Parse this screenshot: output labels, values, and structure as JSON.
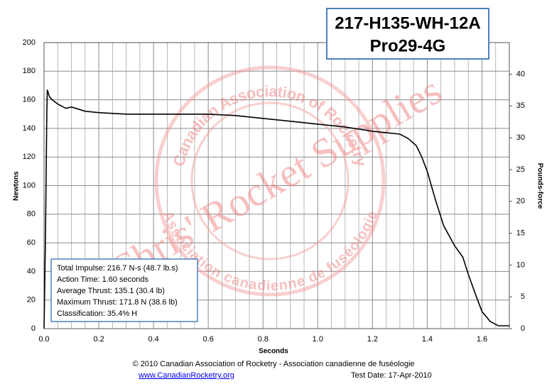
{
  "chart_data": {
    "type": "line",
    "title": "217-H135-WH-12A",
    "subtitle": "Pro29-4G",
    "x_label": "Seconds",
    "y_label": "Newtons",
    "y2_label": "Pounds-force",
    "xlim": [
      0,
      1.7
    ],
    "ylim": [
      0,
      200
    ],
    "y2lim": [
      0,
      44.96
    ],
    "xticks": [
      {
        "value": 0,
        "label": "0.0"
      },
      0.2,
      0.4,
      0.6,
      0.8,
      {
        "value": 1,
        "label": "1.0"
      },
      1.2,
      1.4,
      1.6
    ],
    "xminorticks": [
      0.05,
      0.1,
      0.15,
      0.25,
      0.3,
      0.35,
      0.45,
      0.5,
      0.55,
      0.65,
      0.7,
      0.75,
      0.85,
      0.9,
      0.95,
      1.05,
      1.1,
      1.15,
      1.25,
      1.3,
      1.35,
      1.45,
      1.5,
      1.55,
      1.65,
      1.7
    ],
    "yticks": [
      0,
      20,
      40,
      60,
      80,
      100,
      120,
      140,
      160,
      180,
      200
    ],
    "y2ticks": [
      0,
      5,
      10,
      15,
      20,
      25,
      30,
      35,
      40
    ],
    "grid": true,
    "series": [
      {
        "name": "Thrust",
        "color": "#000000",
        "x": [
          0,
          0.005,
          0.01,
          0.012,
          0.02,
          0.03,
          0.05,
          0.08,
          0.1,
          0.15,
          0.2,
          0.3,
          0.4,
          0.5,
          0.6,
          0.7,
          0.8,
          0.9,
          1.0,
          1.1,
          1.2,
          1.25,
          1.3,
          1.33,
          1.36,
          1.38,
          1.4,
          1.43,
          1.46,
          1.5,
          1.53,
          1.55,
          1.58,
          1.6,
          1.63,
          1.66,
          1.7
        ],
        "values": [
          0,
          60,
          150,
          167,
          162,
          160,
          157,
          154,
          155,
          152,
          151,
          150,
          150,
          150,
          150,
          149,
          147,
          145,
          143,
          141,
          138,
          137,
          136,
          133,
          128,
          120,
          110,
          90,
          72,
          58,
          50,
          38,
          22,
          12,
          5,
          2,
          2
        ]
      }
    ],
    "info": [
      "Total Impulse: 216.7 N-s (48.7 lb.s)",
      "Action Time: 1.60 seconds",
      "Average Thrust: 135.1 (30.4 lb)",
      "Maximum Thrust: 171.8 N (38.6 lb)",
      "Classification: 35.4% H"
    ],
    "watermark": {
      "main": "Chris' Rocket Supplies",
      "ring_top": "Canadian Association of Rocketry",
      "ring_bottom": "Association canadienne de fuséologie"
    },
    "footer": {
      "copyright": "© 2010 Canadian Association of Rocketry - Association canadienne de fuséologie",
      "link": "www.CanadianRocketry.org",
      "test_date": "Test  Date: 17-Apr-2010"
    }
  }
}
